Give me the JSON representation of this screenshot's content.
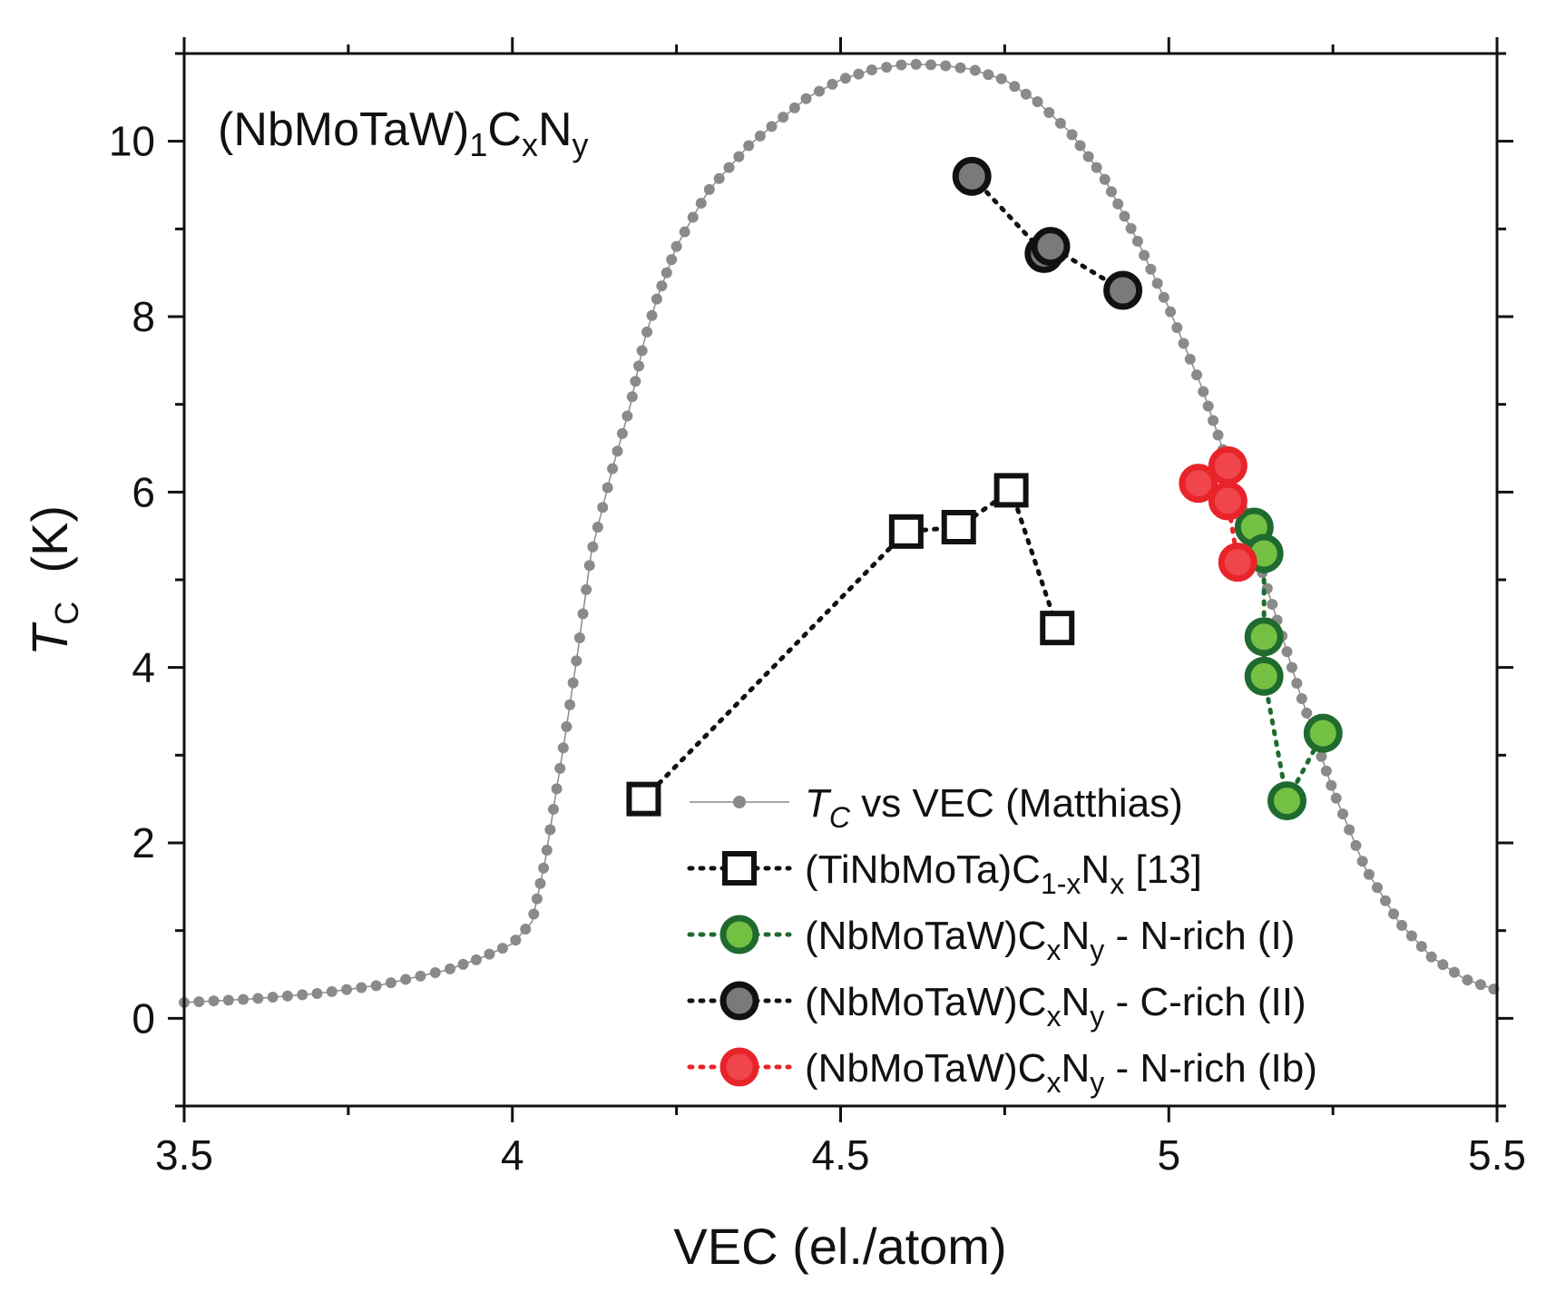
{
  "chart_data": {
    "type": "scatter",
    "annotation": {
      "main": "(NbMoTaW)",
      "sub1": "1",
      "c": "C",
      "sub2": "x",
      "n": "N",
      "sub3": "y"
    },
    "xlabel": "VEC (el./atom)",
    "ylabel": {
      "main": "T",
      "sub": "C",
      "rest": "  (K)"
    },
    "xlim": [
      3.5,
      5.5
    ],
    "ylim": [
      -1,
      11
    ],
    "xticks": [
      3.5,
      4,
      4.5,
      5,
      5.5
    ],
    "xtick_labels": [
      "3.5",
      "4",
      "4.5",
      "5",
      "5.5"
    ],
    "yticks": [
      0,
      2,
      4,
      6,
      8,
      10
    ],
    "ytick_labels": [
      "0",
      "2",
      "4",
      "6",
      "8",
      "10"
    ],
    "grid": false,
    "legend_position": "bottom-right",
    "legend": [
      {
        "parts": [
          {
            "t": "T",
            "italic": true
          },
          {
            "t": "C",
            "italic": true,
            "sub": true
          },
          {
            "t": " vs VEC (Matthias)"
          }
        ]
      },
      {
        "parts": [
          {
            "t": "(TiNbMoTa)C"
          },
          {
            "t": "1-x",
            "sub": true
          },
          {
            "t": "N"
          },
          {
            "t": "x",
            "sub": true
          },
          {
            "t": " [13]"
          }
        ]
      },
      {
        "parts": [
          {
            "t": "(NbMoTaW)C"
          },
          {
            "t": "x",
            "sub": true
          },
          {
            "t": "N"
          },
          {
            "t": "y",
            "sub": true
          },
          {
            "t": " - N-rich (I)"
          }
        ]
      },
      {
        "parts": [
          {
            "t": "(NbMoTaW)C"
          },
          {
            "t": "x",
            "sub": true
          },
          {
            "t": "N"
          },
          {
            "t": "y",
            "sub": true
          },
          {
            "t": " - C-rich (II)"
          }
        ]
      },
      {
        "parts": [
          {
            "t": "(NbMoTaW)C"
          },
          {
            "t": "x",
            "sub": true
          },
          {
            "t": "N"
          },
          {
            "t": "y",
            "sub": true
          },
          {
            "t": " - N-rich (Ib)"
          }
        ]
      }
    ],
    "matthias_curve": {
      "color": "#8a8a8a",
      "x": [
        3.5,
        3.6,
        3.7,
        3.8,
        3.9,
        3.95,
        4.0,
        4.03,
        4.05,
        4.08,
        4.1,
        4.12,
        4.15,
        4.18,
        4.2,
        4.22,
        4.25,
        4.28,
        4.3,
        4.33,
        4.36,
        4.4,
        4.45,
        4.5,
        4.55,
        4.6,
        4.65,
        4.7,
        4.75,
        4.8,
        4.85,
        4.9,
        4.95,
        5.0,
        5.05,
        5.1,
        5.15,
        5.2,
        5.25,
        5.3,
        5.35,
        5.4,
        5.45,
        5.5
      ],
      "y": [
        0.18,
        0.22,
        0.28,
        0.38,
        0.55,
        0.68,
        0.85,
        1.1,
        1.8,
        3.2,
        4.2,
        5.3,
        6.2,
        7.0,
        7.7,
        8.2,
        8.8,
        9.2,
        9.45,
        9.7,
        9.95,
        10.2,
        10.5,
        10.7,
        10.82,
        10.88,
        10.87,
        10.82,
        10.7,
        10.45,
        10.1,
        9.6,
        8.9,
        8.1,
        7.2,
        6.1,
        4.9,
        3.7,
        2.6,
        1.7,
        1.1,
        0.7,
        0.45,
        0.32
      ]
    },
    "series": [
      {
        "name": "(TiNbMoTa)C1-xNx [13]",
        "marker": "square",
        "edge_color": "#111111",
        "fill_color": "#ffffff",
        "line_color": "#111111",
        "x": [
          4.2,
          4.6,
          4.68,
          4.76,
          4.83
        ],
        "y": [
          2.5,
          5.55,
          5.6,
          6.02,
          4.45
        ]
      },
      {
        "name": "(NbMoTaW)CxNy - N-rich (I)",
        "marker": "circle",
        "edge_color": "#1f6b2f",
        "fill_color": "#74c043",
        "line_color": "#1f6b2f",
        "x": [
          5.13,
          5.145,
          5.145,
          5.145,
          5.18,
          5.235
        ],
        "y": [
          5.6,
          5.3,
          4.35,
          3.9,
          2.48,
          3.25
        ]
      },
      {
        "name": "(NbMoTaW)CxNy - C-rich (II)",
        "marker": "circle",
        "edge_color": "#111111",
        "fill_color": "#7a7a7a",
        "line_color": "#111111",
        "x": [
          4.7,
          4.81,
          4.82,
          4.93
        ],
        "y": [
          9.6,
          8.72,
          8.8,
          8.3
        ]
      },
      {
        "name": "(NbMoTaW)CxNy - N-rich (Ib)",
        "marker": "circle",
        "edge_color": "#e8242a",
        "fill_color": "#f0454a",
        "line_color": "#e8242a",
        "x": [
          5.045,
          5.09,
          5.09,
          5.105
        ],
        "y": [
          6.1,
          6.3,
          5.9,
          5.2
        ]
      }
    ]
  }
}
